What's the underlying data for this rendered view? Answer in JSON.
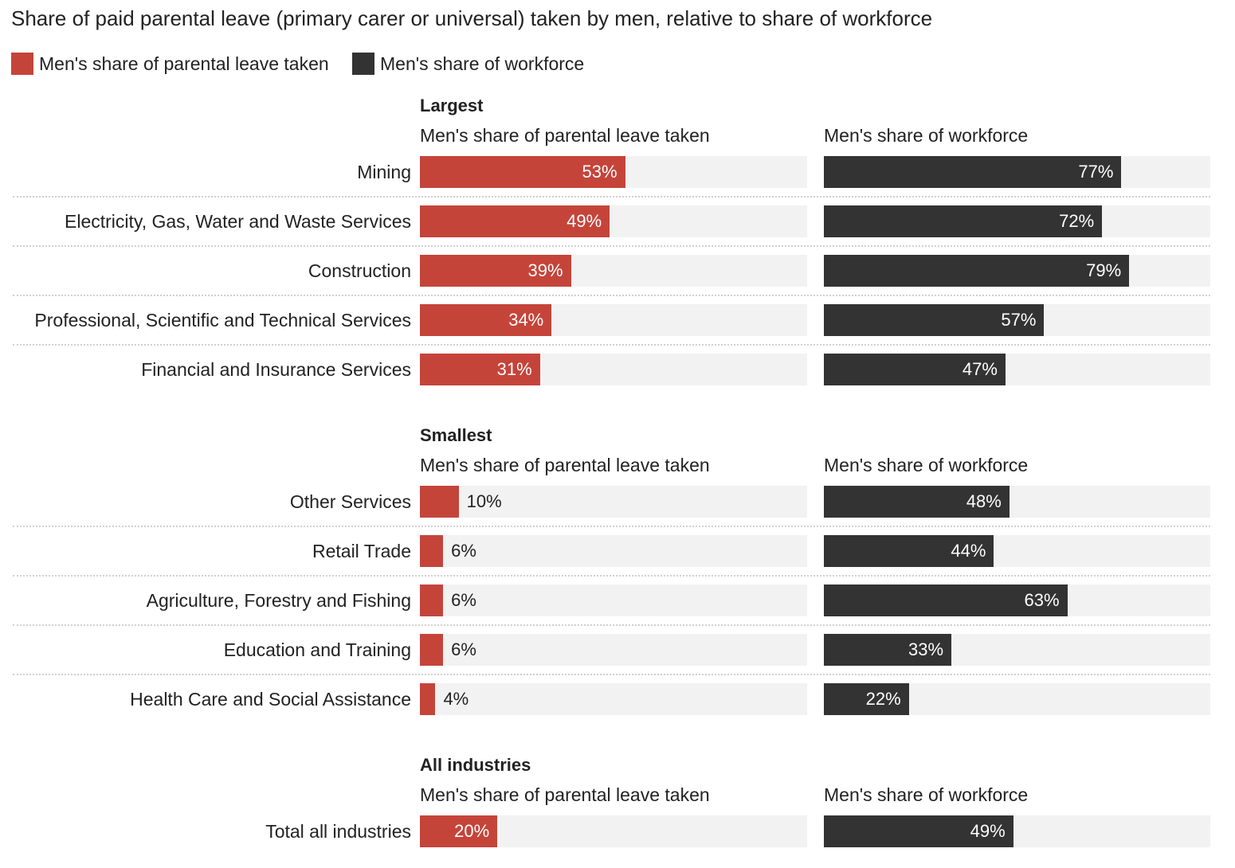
{
  "chart_data": {
    "type": "bar",
    "title": "Share of paid parental leave (primary carer or universal) taken by men, relative to share of workforce",
    "legend": [
      {
        "name": "Men's share of parental leave taken",
        "color": "#c5443a"
      },
      {
        "name": "Men's share of workforce",
        "color": "#333333"
      }
    ],
    "legend_placement": "top-left",
    "xlim": [
      0,
      100
    ],
    "unit": "%",
    "column_headers": [
      "Men's share of parental leave taken",
      "Men's share of workforce"
    ],
    "colors": {
      "leave": "#c5443a",
      "workforce": "#333333",
      "track": "#f2f2f2"
    },
    "sections": [
      {
        "title": "Largest",
        "rows": [
          {
            "label": "Mining",
            "leave": 53,
            "workforce": 77
          },
          {
            "label": "Electricity, Gas, Water and Waste Services",
            "leave": 49,
            "workforce": 72
          },
          {
            "label": "Construction",
            "leave": 39,
            "workforce": 79
          },
          {
            "label": "Professional, Scientific and Technical Services",
            "leave": 34,
            "workforce": 57
          },
          {
            "label": "Financial and Insurance Services",
            "leave": 31,
            "workforce": 47
          }
        ]
      },
      {
        "title": "Smallest",
        "rows": [
          {
            "label": "Other Services",
            "leave": 10,
            "workforce": 48
          },
          {
            "label": "Retail Trade",
            "leave": 6,
            "workforce": 44
          },
          {
            "label": "Agriculture, Forestry and Fishing",
            "leave": 6,
            "workforce": 63
          },
          {
            "label": "Education and Training",
            "leave": 6,
            "workforce": 33
          },
          {
            "label": "Health Care and Social Assistance",
            "leave": 4,
            "workforce": 22
          }
        ]
      },
      {
        "title": "All industries",
        "rows": [
          {
            "label": "Total all industries",
            "leave": 20,
            "workforce": 49
          }
        ]
      }
    ]
  }
}
